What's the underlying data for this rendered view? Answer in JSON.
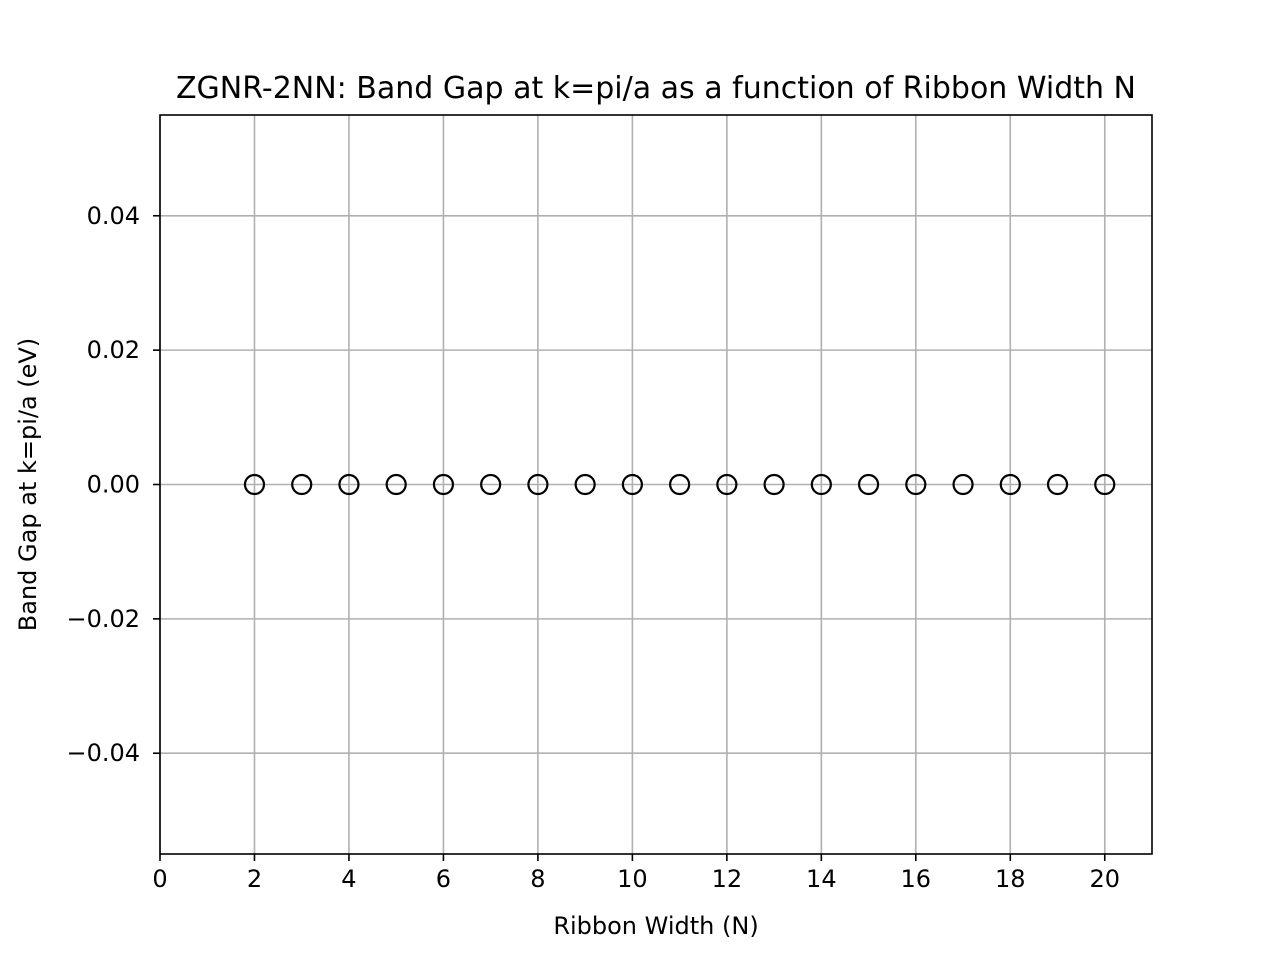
{
  "chart_data": {
    "type": "scatter",
    "title": "ZGNR-2NN: Band Gap at k=pi/a as a function of Ribbon Width N",
    "xlabel": "Ribbon Width (N)",
    "ylabel": "Band Gap at k=pi/a (eV)",
    "xlim": [
      0,
      21
    ],
    "ylim": [
      -0.055,
      0.055
    ],
    "xticks": [
      0,
      2,
      4,
      6,
      8,
      10,
      12,
      14,
      16,
      18,
      20
    ],
    "xtick_labels": [
      "0",
      "2",
      "4",
      "6",
      "8",
      "10",
      "12",
      "14",
      "16",
      "18",
      "20"
    ],
    "yticks": [
      -0.04,
      -0.02,
      0.0,
      0.02,
      0.04
    ],
    "ytick_labels": [
      "−0.04",
      "−0.02",
      "0.00",
      "0.02",
      "0.04"
    ],
    "grid": true,
    "marker": "open-circle",
    "marker_color": "#000000",
    "grid_color": "#b0b0b0",
    "series": [
      {
        "x": [
          2,
          3,
          4,
          5,
          6,
          7,
          8,
          9,
          10,
          11,
          12,
          13,
          14,
          15,
          16,
          17,
          18,
          19,
          20
        ],
        "y": [
          0,
          0,
          0,
          0,
          0,
          0,
          0,
          0,
          0,
          0,
          0,
          0,
          0,
          0,
          0,
          0,
          0,
          0,
          0
        ]
      }
    ]
  }
}
